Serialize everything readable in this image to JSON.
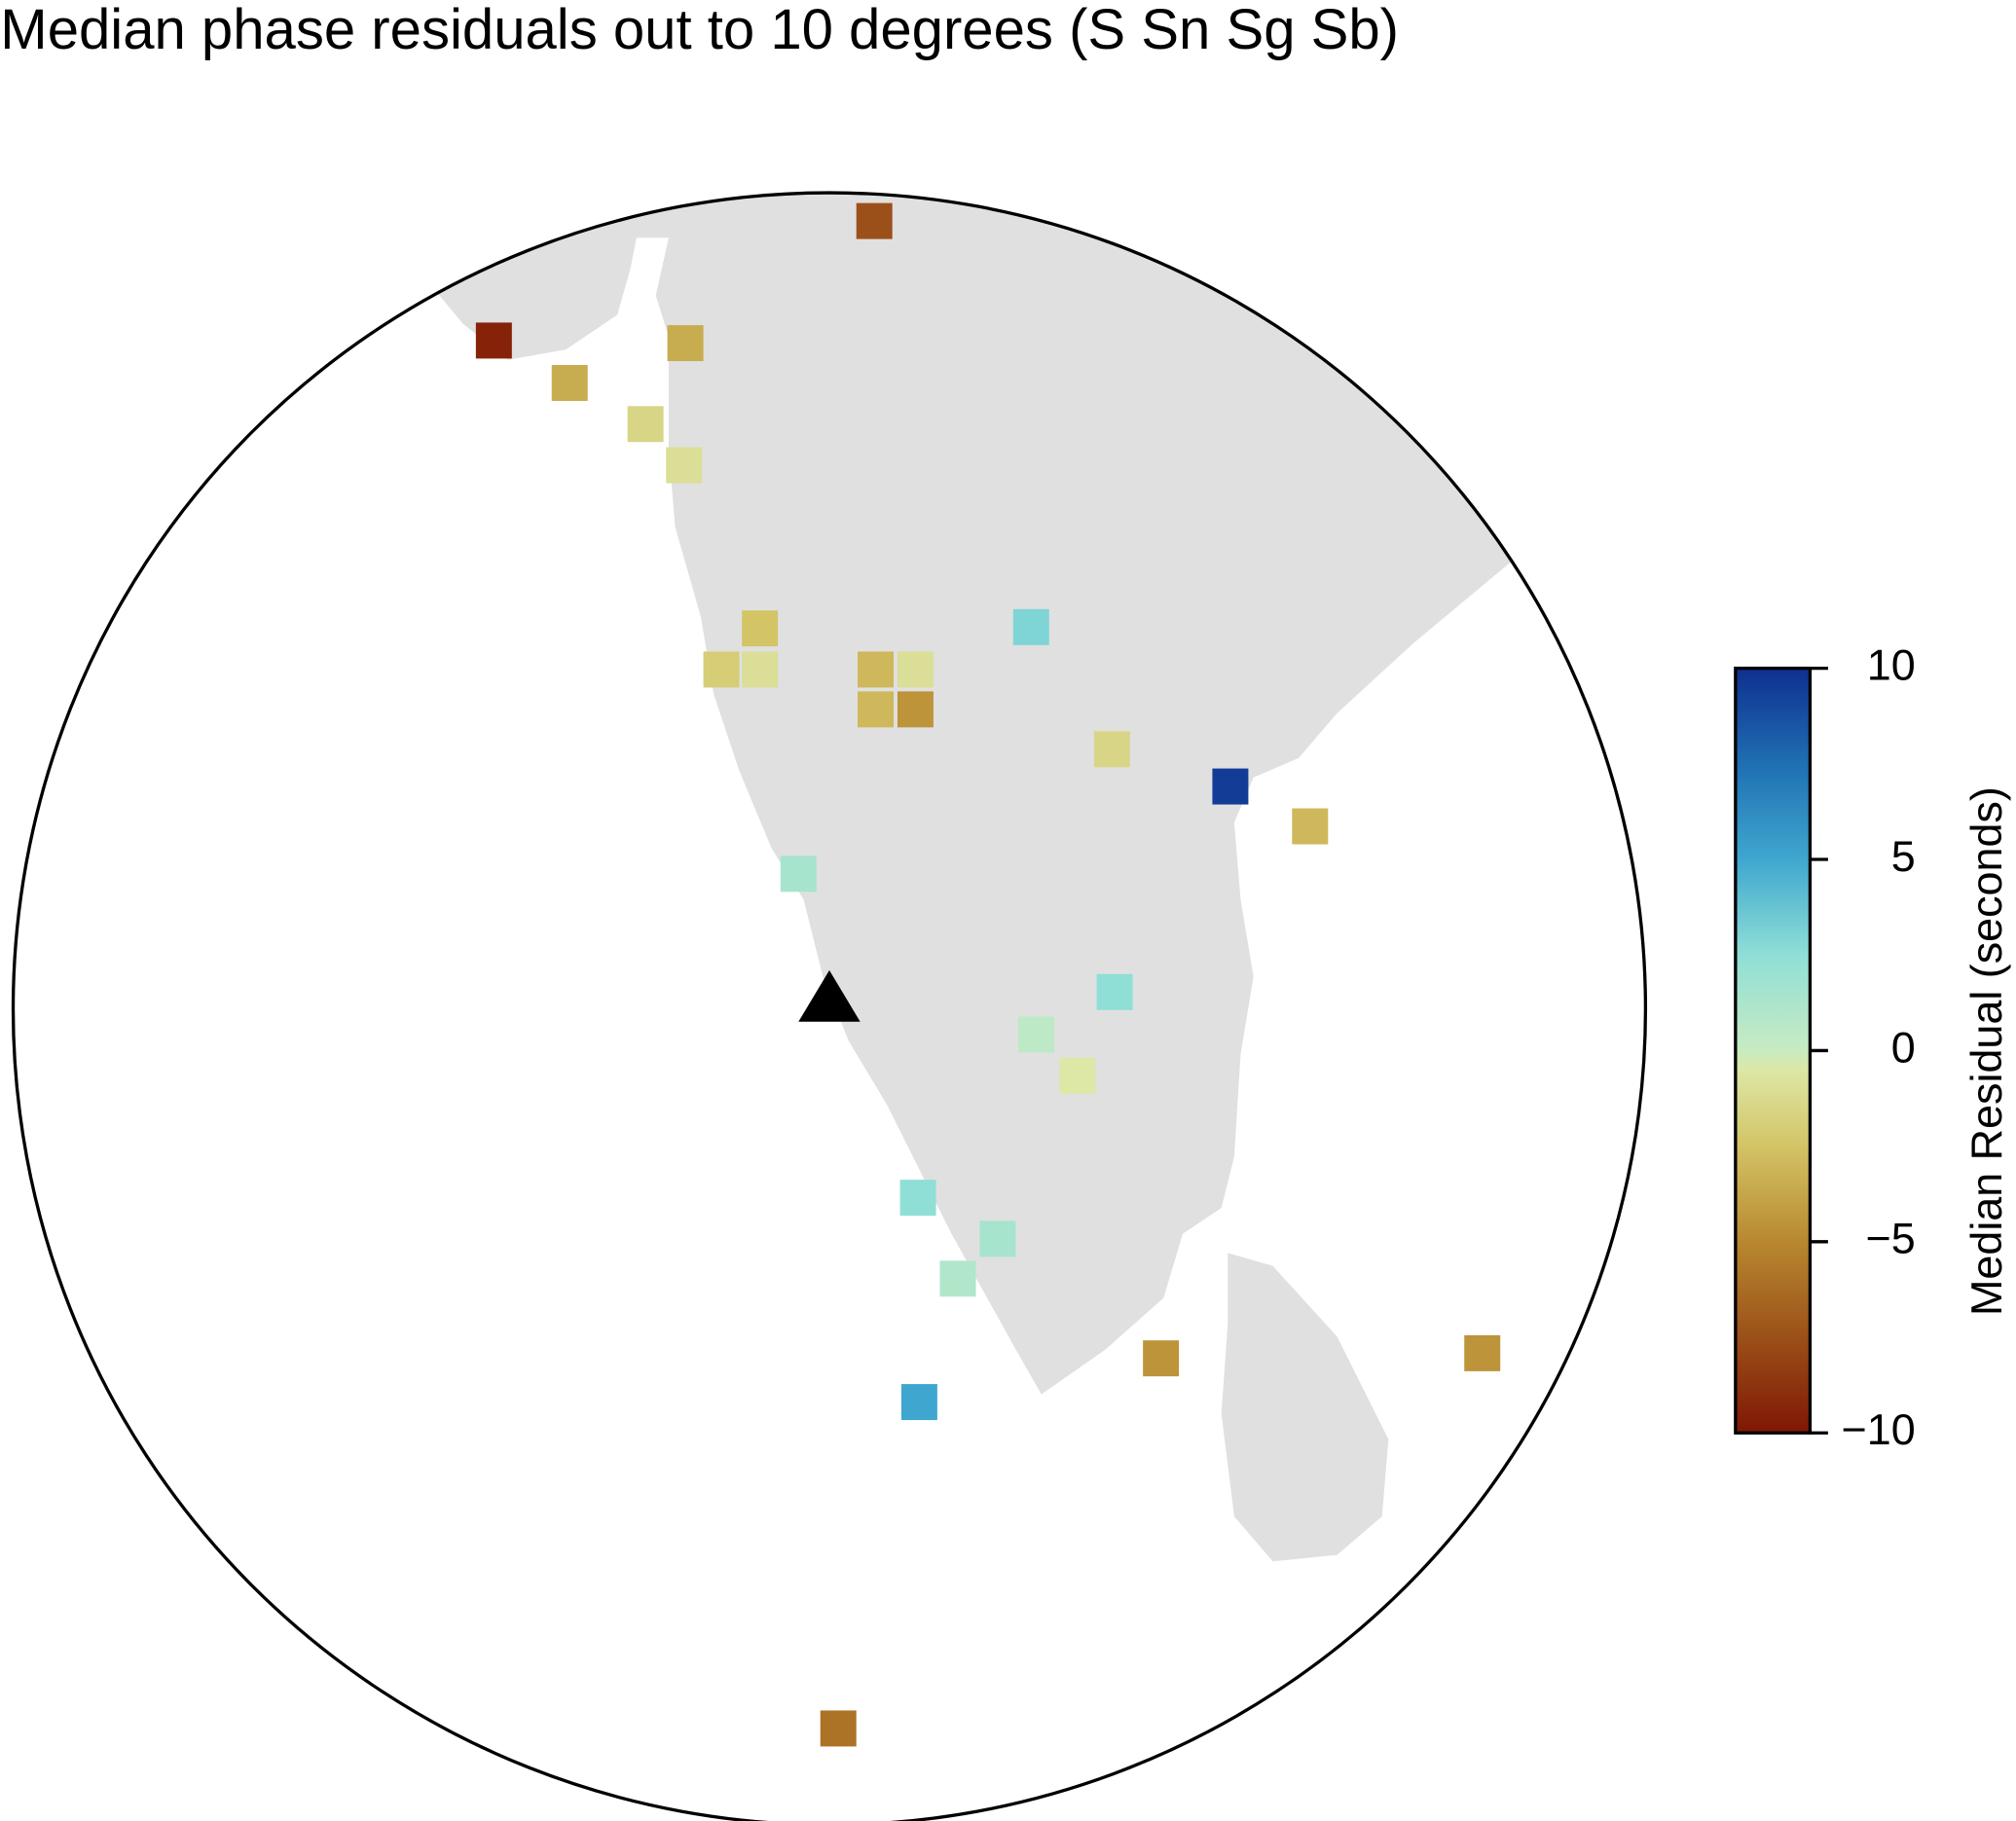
{
  "chart_data": {
    "type": "map",
    "title": "Median phase residuals out to 10 degrees (S Sn Sg Sb)",
    "colorbar_label": "Median Residual (seconds)",
    "clim": [
      -10,
      10
    ],
    "cticks": [
      {
        "value": -10,
        "label": "−10"
      },
      {
        "value": -5,
        "label": "−5"
      },
      0,
      5,
      10
    ],
    "values": [
      -7.5,
      -9.5,
      -3.5,
      -3.5,
      -1.5,
      -1,
      -2.5,
      -2,
      -1,
      -3,
      -1,
      -3,
      -4.5,
      3,
      -1.5,
      9.5,
      -3,
      1.5,
      2.5,
      0.5,
      -0.5,
      2.5,
      1.5,
      1,
      -4.5,
      -4.5,
      5,
      -6
    ]
  }
}
